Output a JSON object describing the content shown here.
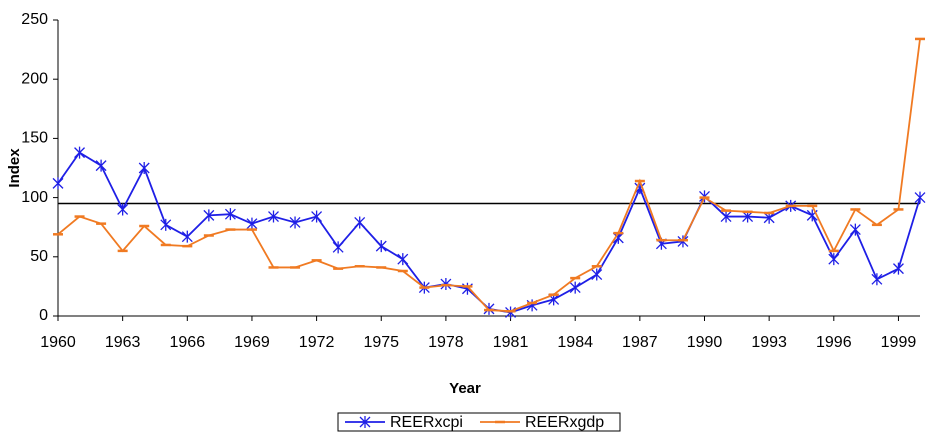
{
  "chart_data": {
    "type": "line",
    "x_label": "Year",
    "y_label": "Index",
    "x": [
      1960,
      1961,
      1962,
      1963,
      1964,
      1965,
      1966,
      1967,
      1968,
      1969,
      1970,
      1971,
      1972,
      1973,
      1974,
      1975,
      1976,
      1977,
      1978,
      1979,
      1980,
      1981,
      1982,
      1983,
      1984,
      1985,
      1986,
      1987,
      1988,
      1989,
      1990,
      1991,
      1992,
      1993,
      1994,
      1995,
      1996,
      1997,
      1998,
      1999,
      2000
    ],
    "series": [
      {
        "name": "REERxcpi",
        "color": "#1f1fe6",
        "marker": "star",
        "values": [
          112,
          138,
          127,
          90,
          125,
          77,
          67,
          85,
          86,
          78,
          84,
          79,
          84,
          58,
          79,
          59,
          48,
          24,
          27,
          23,
          6,
          3,
          9,
          14,
          24,
          35,
          66,
          108,
          61,
          63,
          101,
          84,
          84,
          83,
          93,
          85,
          48,
          73,
          31,
          40,
          100
        ]
      },
      {
        "name": "REERxgdp",
        "color": "#f07a22",
        "marker": "dash",
        "values": [
          69,
          84,
          78,
          55,
          76,
          60,
          59,
          68,
          73,
          73,
          41,
          41,
          47,
          40,
          42,
          41,
          38,
          24,
          26,
          25,
          5,
          4,
          11,
          18,
          32,
          42,
          70,
          114,
          64,
          64,
          100,
          89,
          88,
          87,
          93,
          93,
          55,
          90,
          77,
          90,
          234
        ]
      }
    ],
    "xlim": [
      1960,
      2000
    ],
    "xticks": [
      1960,
      1963,
      1966,
      1969,
      1972,
      1975,
      1978,
      1981,
      1984,
      1987,
      1990,
      1993,
      1996,
      1999
    ],
    "ylim": [
      0,
      250
    ],
    "yticks": [
      0,
      50,
      100,
      150,
      200,
      250
    ],
    "hline": 95,
    "legend": "bottom"
  }
}
